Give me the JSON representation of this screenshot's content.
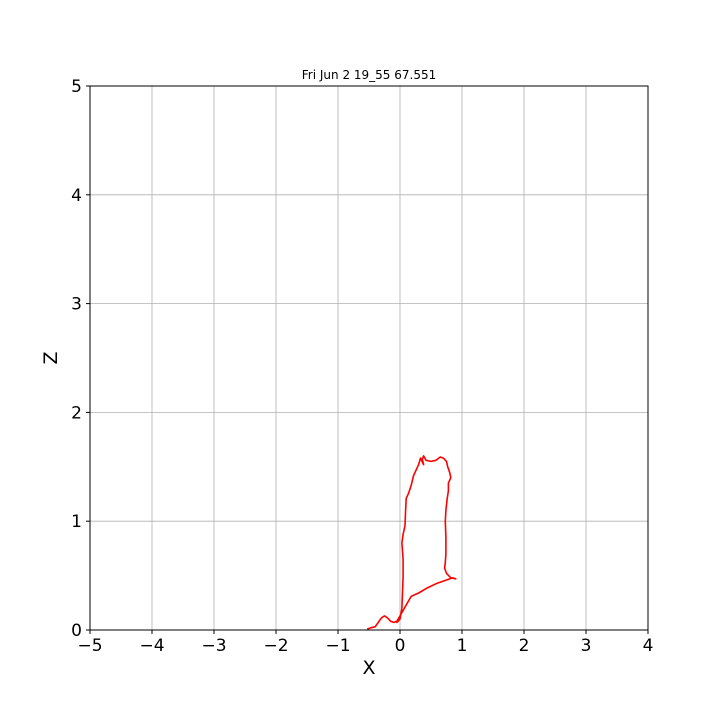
{
  "chart_data": {
    "type": "line",
    "title": "Fri Jun  2 19_55 67.551",
    "xlabel": "X",
    "ylabel": "Z",
    "xlim": [
      -5,
      4
    ],
    "ylim": [
      0,
      5
    ],
    "xticks": [
      -5,
      -4,
      -3,
      -2,
      -1,
      0,
      1,
      2,
      3,
      4
    ],
    "yticks": [
      0,
      1,
      2,
      3,
      4,
      5
    ],
    "xtick_labels": [
      "−5",
      "−4",
      "−3",
      "−2",
      "−1",
      "0",
      "1",
      "2",
      "3",
      "4"
    ],
    "ytick_labels": [
      "0",
      "1",
      "2",
      "3",
      "4",
      "5"
    ],
    "grid": true,
    "series": [
      {
        "color": "#ff0000",
        "points": [
          [
            -0.52,
            0.01
          ],
          [
            -0.47,
            0.02
          ],
          [
            -0.4,
            0.03
          ],
          [
            -0.35,
            0.07
          ],
          [
            -0.3,
            0.11
          ],
          [
            -0.25,
            0.13
          ],
          [
            -0.2,
            0.11
          ],
          [
            -0.15,
            0.08
          ],
          [
            -0.1,
            0.07
          ],
          [
            -0.05,
            0.08
          ],
          [
            0.0,
            0.13
          ],
          [
            0.1,
            0.23
          ],
          [
            0.18,
            0.31
          ],
          [
            0.3,
            0.34
          ],
          [
            0.45,
            0.39
          ],
          [
            0.6,
            0.43
          ],
          [
            0.75,
            0.46
          ],
          [
            0.85,
            0.48
          ],
          [
            0.9,
            0.47
          ],
          [
            0.82,
            0.48
          ],
          [
            0.75,
            0.52
          ],
          [
            0.72,
            0.57
          ],
          [
            0.73,
            0.62
          ],
          [
            0.74,
            0.7
          ],
          [
            0.74,
            0.85
          ],
          [
            0.73,
            1.0
          ],
          [
            0.74,
            1.1
          ],
          [
            0.76,
            1.2
          ],
          [
            0.78,
            1.28
          ],
          [
            0.78,
            1.35
          ],
          [
            0.82,
            1.4
          ],
          [
            0.8,
            1.45
          ],
          [
            0.77,
            1.5
          ],
          [
            0.75,
            1.55
          ],
          [
            0.7,
            1.58
          ],
          [
            0.65,
            1.59
          ],
          [
            0.58,
            1.56
          ],
          [
            0.5,
            1.55
          ],
          [
            0.42,
            1.56
          ],
          [
            0.38,
            1.6
          ],
          [
            0.36,
            1.57
          ],
          [
            0.38,
            1.52
          ],
          [
            0.33,
            1.58
          ],
          [
            0.3,
            1.52
          ],
          [
            0.26,
            1.47
          ],
          [
            0.22,
            1.42
          ],
          [
            0.18,
            1.33
          ],
          [
            0.14,
            1.26
          ],
          [
            0.1,
            1.21
          ],
          [
            0.09,
            1.1
          ],
          [
            0.08,
            0.96
          ],
          [
            0.05,
            0.88
          ],
          [
            0.03,
            0.8
          ],
          [
            0.05,
            0.65
          ],
          [
            0.05,
            0.5
          ],
          [
            0.04,
            0.35
          ],
          [
            0.03,
            0.2
          ],
          [
            0.0,
            0.1
          ],
          [
            -0.05,
            0.07
          ]
        ]
      }
    ]
  }
}
